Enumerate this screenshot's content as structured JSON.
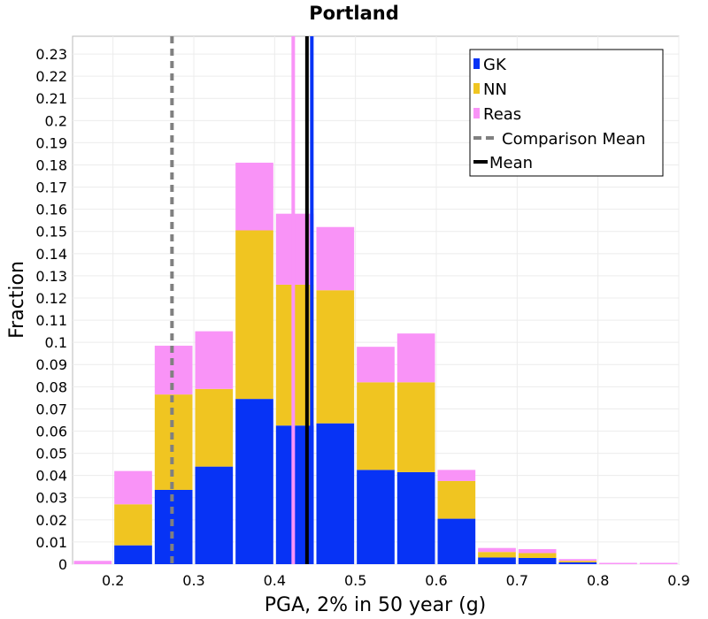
{
  "chart_data": {
    "type": "bar",
    "title": "Portland",
    "xlabel": "PGA, 2% in 50 year (g)",
    "ylabel": "Fraction",
    "xlim": [
      0.15,
      0.9
    ],
    "ylim": [
      0,
      0.238
    ],
    "x_ticks": [
      "0.2",
      "0.3",
      "0.4",
      "0.5",
      "0.6",
      "0.7",
      "0.8",
      "0.9"
    ],
    "y_ticks": [
      "0",
      "0.01",
      "0.02",
      "0.03",
      "0.04",
      "0.05",
      "0.06",
      "0.07",
      "0.08",
      "0.09",
      "0.1",
      "0.11",
      "0.12",
      "0.13",
      "0.14",
      "0.15",
      "0.16",
      "0.17",
      "0.18",
      "0.19",
      "0.2",
      "0.21",
      "0.22",
      "0.23"
    ],
    "grid": true,
    "stacked": true,
    "bin_width": 0.05,
    "x": [
      0.175,
      0.225,
      0.275,
      0.325,
      0.375,
      0.425,
      0.475,
      0.525,
      0.575,
      0.625,
      0.675,
      0.725,
      0.775,
      0.825,
      0.875
    ],
    "series": [
      {
        "name": "GK",
        "color": "#0733f5",
        "values": [
          0.0,
          0.0085,
          0.0335,
          0.044,
          0.0745,
          0.0625,
          0.0635,
          0.0425,
          0.0415,
          0.0205,
          0.003,
          0.0028,
          0.0008,
          0.0,
          0.0
        ]
      },
      {
        "name": "NN",
        "color": "#f0c521",
        "values": [
          0.0,
          0.0185,
          0.043,
          0.035,
          0.076,
          0.0635,
          0.06,
          0.0395,
          0.0405,
          0.017,
          0.0025,
          0.0022,
          0.0007,
          0.0,
          0.0
        ]
      },
      {
        "name": "Reas",
        "color": "#f993f7",
        "values": [
          0.0015,
          0.015,
          0.022,
          0.026,
          0.0305,
          0.032,
          0.0285,
          0.016,
          0.022,
          0.005,
          0.0018,
          0.0018,
          0.0008,
          0.0006,
          0.0006
        ]
      }
    ],
    "mean_lines": [
      {
        "series": "GK",
        "x": 0.446,
        "color": "#0733f5"
      },
      {
        "series": "Reas",
        "x": 0.423,
        "color": "#f993f7"
      },
      {
        "series": "Mean",
        "x": 0.44,
        "color": "#000000"
      },
      {
        "series": "Comparison Mean",
        "x": 0.273,
        "color": "#808080",
        "style": "dashed"
      }
    ],
    "legend": {
      "position": "top-right",
      "entries": [
        {
          "label": "GK",
          "color": "#0733f5",
          "kind": "box"
        },
        {
          "label": "NN",
          "color": "#f0c521",
          "kind": "box"
        },
        {
          "label": "Reas",
          "color": "#f993f7",
          "kind": "box"
        },
        {
          "label": "Comparison Mean",
          "color": "#808080",
          "kind": "dashed-line"
        },
        {
          "label": "Mean",
          "color": "#000000",
          "kind": "line"
        }
      ]
    }
  }
}
